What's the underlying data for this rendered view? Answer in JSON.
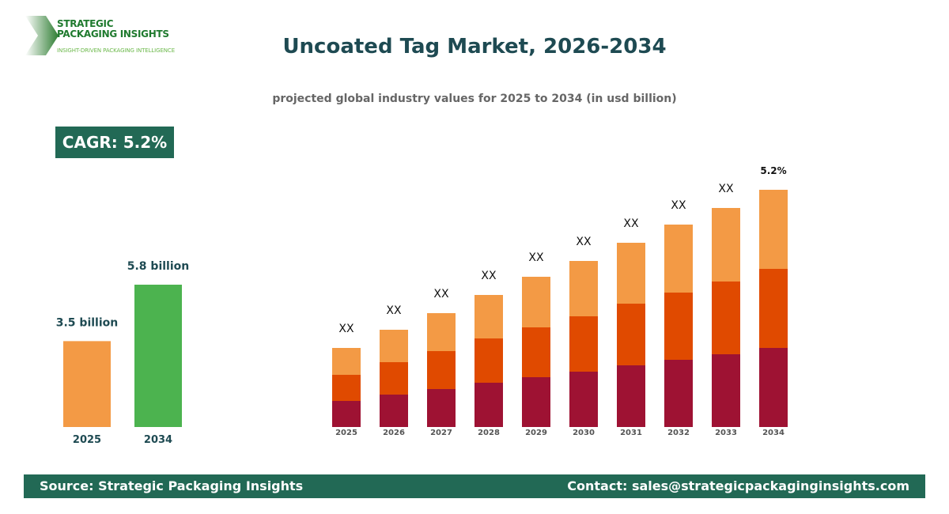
{
  "logo": {
    "line1": "STRATEGIC",
    "line2": "PACKAGING INSIGHTS",
    "tagline": "INSIGHT-DRIVEN PACKAGING INTELLIGENCE"
  },
  "title": "Uncoated Tag Market, 2026-2034",
  "subtitle": "projected global industry values for 2025 to 2034 (in usd billion)",
  "cagr_badge": "CAGR: 5.2%",
  "colors": {
    "brand": "#226955",
    "bar_2025": "#f39a45",
    "bar_2034": "#4cb34f",
    "seg_bottom": "#9e1233",
    "seg_middle": "#e04a00",
    "seg_top": "#f39a45"
  },
  "chart_data": [
    {
      "type": "bar",
      "categories": [
        "2025",
        "2034"
      ],
      "values": [
        3.5,
        5.8
      ],
      "data_labels": [
        "3.5 billion",
        "5.8 billion"
      ]
    },
    {
      "type": "stacked-bar",
      "categories": [
        "2025",
        "2026",
        "2027",
        "2028",
        "2029",
        "2030",
        "2031",
        "2032",
        "2033",
        "2034"
      ],
      "series": [
        {
          "values": [
            33,
            41,
            48,
            56,
            63,
            70,
            78,
            85,
            92,
            100
          ]
        },
        {
          "values": [
            33,
            41,
            48,
            56,
            63,
            70,
            78,
            85,
            92,
            100
          ]
        },
        {
          "values": [
            34,
            41,
            48,
            55,
            64,
            70,
            77,
            86,
            93,
            100
          ]
        }
      ],
      "data_labels": [
        "XX",
        "XX",
        "XX",
        "XX",
        "XX",
        "XX",
        "XX",
        "XX",
        "XX",
        "5.2%"
      ]
    }
  ],
  "footer": {
    "source": "Source: Strategic Packaging Insights",
    "contact": "Contact: sales@strategicpackaginginsights.com"
  }
}
